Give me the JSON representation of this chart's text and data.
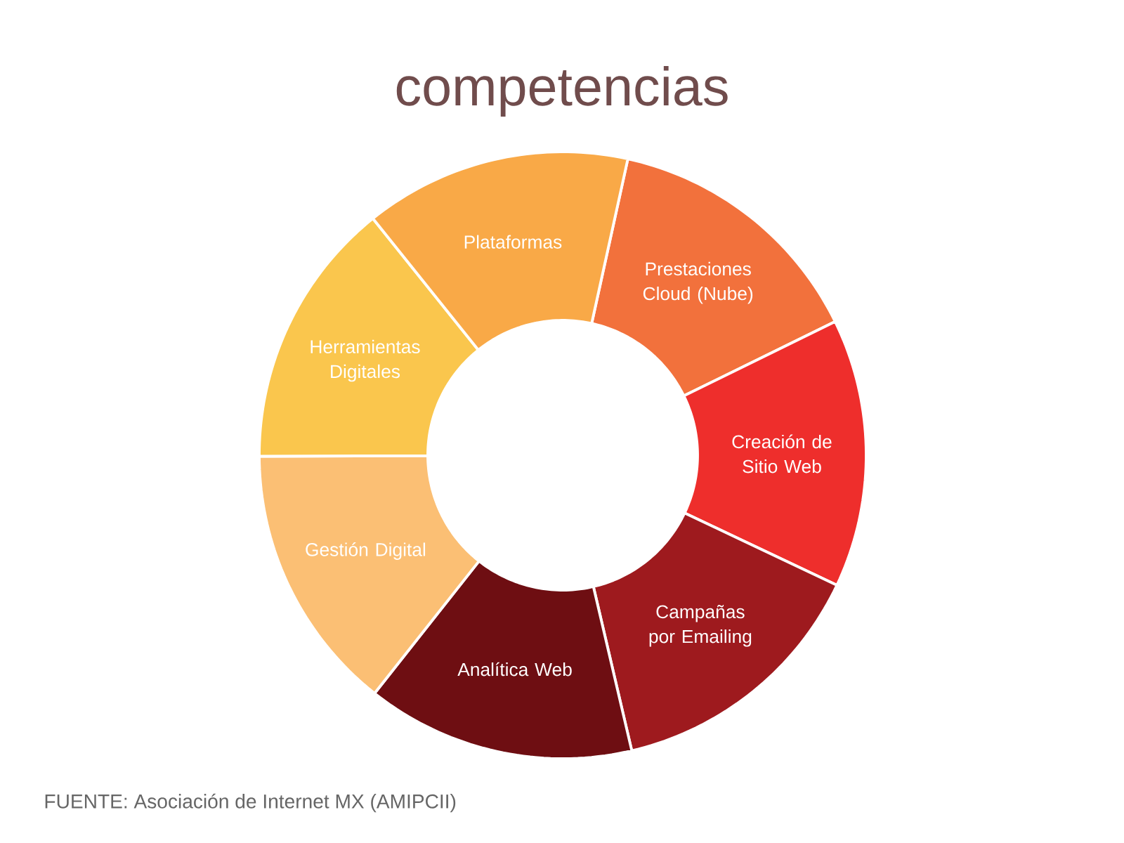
{
  "chart_data": {
    "type": "donut",
    "title": "competencias",
    "categories": [
      "Prestaciones Cloud (Nube)",
      "Creación de Sitio Web",
      "Campañas por Emailing",
      "Analítica Web",
      "Gestión Digital",
      "Herramientas Digitales",
      "Plataformas"
    ],
    "values": [
      14.3,
      14.3,
      14.3,
      14.3,
      14.3,
      14.3,
      14.2
    ],
    "colors": [
      "#f2713c",
      "#ee2e2c",
      "#9e1a1e",
      "#6e0e12",
      "#fbbf74",
      "#fac64d",
      "#f9a947"
    ],
    "annotations": [
      "FUENTE: Asociación de Internet MX (AMIPCII)"
    ]
  }
}
